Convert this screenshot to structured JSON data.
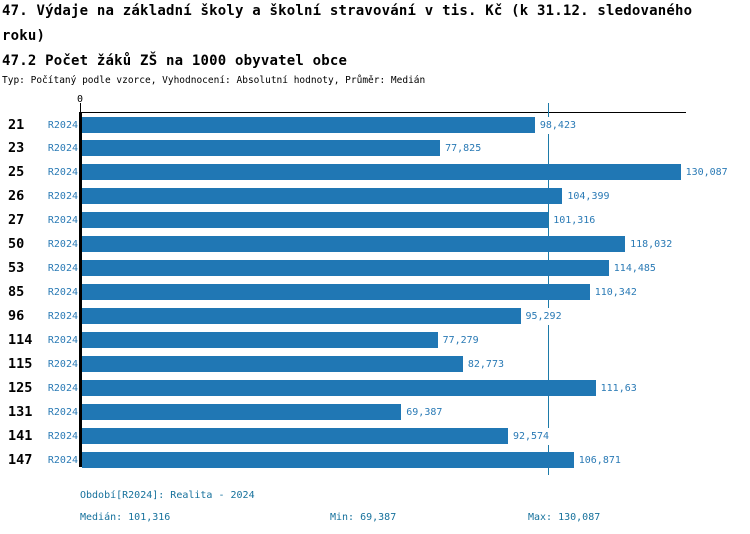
{
  "header": {
    "title_line1": "47. Výdaje na základní školy a školní stravování v tis. Kč (k 31.12. sledovaného",
    "title_line2": "roku)",
    "subtitle": "47.2 Počet žáků ZŠ na 1000 obyvatel obce",
    "meta": "Typ: Počítaný podle vzorce, Vyhodnocení: Absolutní hodnoty, Průměr: Medián"
  },
  "chart_data": {
    "type": "bar",
    "orientation": "horizontal",
    "series_label": "R2024",
    "axis_zero_label": "0",
    "categories": [
      "21",
      "23",
      "25",
      "26",
      "27",
      "50",
      "53",
      "85",
      "96",
      "114",
      "115",
      "125",
      "131",
      "141",
      "147"
    ],
    "values": [
      98.423,
      77.825,
      130.087,
      104.399,
      101.316,
      118.032,
      114.485,
      110.342,
      95.292,
      77.279,
      82.773,
      111.63,
      69.387,
      92.574,
      106.871
    ],
    "value_labels": [
      "98,423",
      "77,825",
      "130,087",
      "104,399",
      "101,316",
      "118,032",
      "114,485",
      "110,342",
      "95,292",
      "77,279",
      "82,773",
      "111,63",
      "69,387",
      "92,574",
      "106,871"
    ],
    "xlim": [
      0,
      131.7
    ],
    "median_value": 101.316,
    "median_line": true,
    "grid": false,
    "legend_position": "none",
    "colors": {
      "bar": "#2077b4",
      "median_line": "#1d7aa8",
      "value_text": "#2a7ab5",
      "footer_text": "#16719c"
    }
  },
  "footer": {
    "period": "Období[R2024]: Realita - 2024",
    "median": "Medián: 101,316",
    "min": "Min: 69,387",
    "max": "Max: 130,087"
  }
}
